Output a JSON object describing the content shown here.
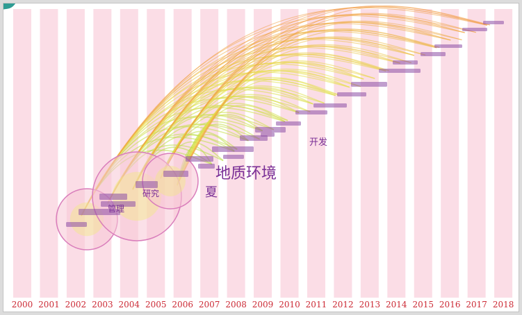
{
  "timeline": {
    "years": [
      "2000",
      "2001",
      "2002",
      "2003",
      "2004",
      "2005",
      "2006",
      "2007",
      "2008",
      "2009",
      "2010",
      "2011",
      "2012",
      "2013",
      "2014",
      "2015",
      "2016",
      "2017",
      "2018"
    ]
  },
  "keywords": [
    {
      "text": "地质环境"
    },
    {
      "text": "开发"
    },
    {
      "text": "夏"
    },
    {
      "text": "研究"
    },
    {
      "text": "管理"
    }
  ],
  "colors": {
    "band": "#fbdde6",
    "year_label": "#cc2a35",
    "node_ring": "#d97dbb",
    "keyword": "#7a2f96",
    "arc_old": "#b9de4a",
    "arc_mid": "#e7e04a",
    "arc_new": "#f29a45"
  }
}
